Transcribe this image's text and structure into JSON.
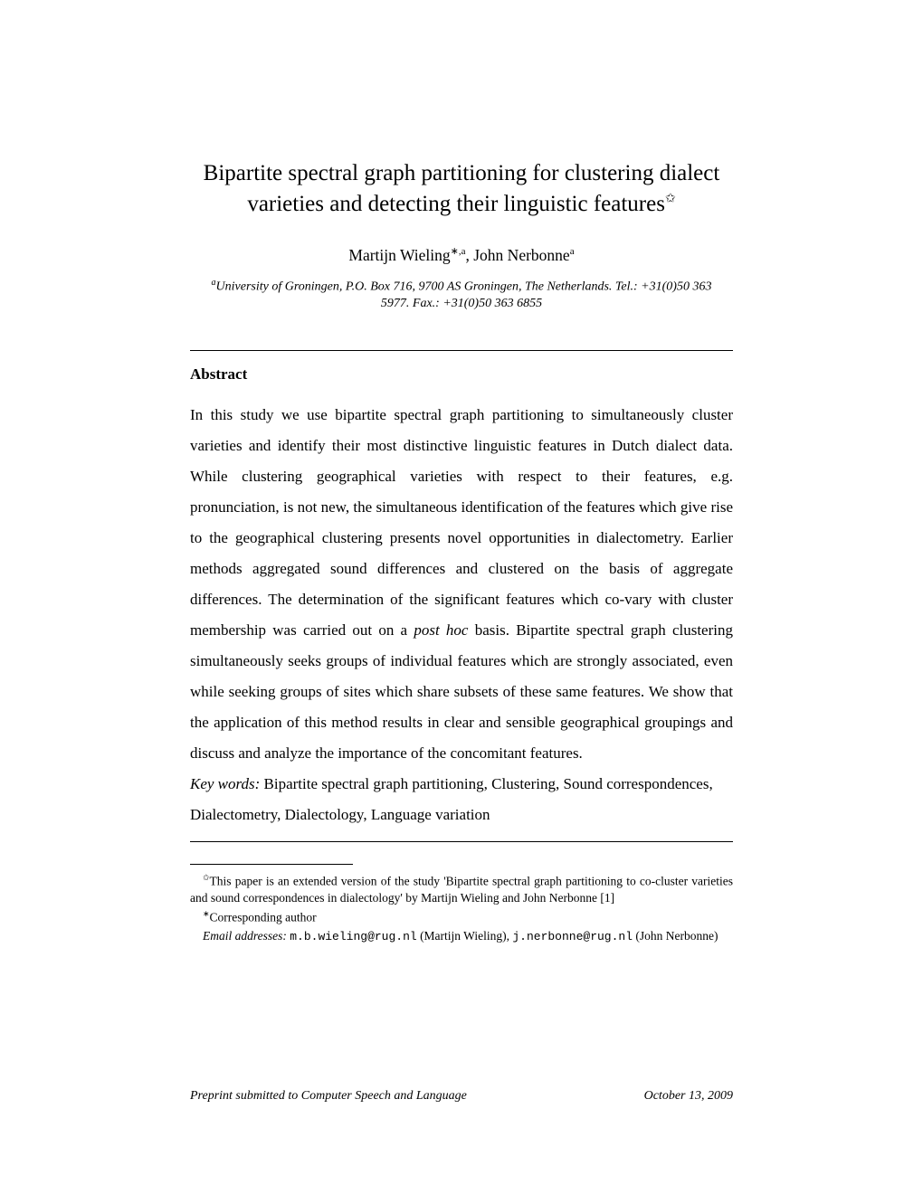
{
  "title": {
    "line1": "Bipartite spectral graph partitioning for clustering dialect",
    "line2_prefix": "varieties and detecting their linguistic features",
    "star": "✩"
  },
  "authors": {
    "a1_name": "Martijn Wieling",
    "a1_marks": "∗,a",
    "sep": ", ",
    "a2_name": "John Nerbonne",
    "a2_marks": "a"
  },
  "affiliation": {
    "sup": "a",
    "text": "University of Groningen, P.O. Box 716, 9700 AS Groningen, The Netherlands. Tel.: +31(0)50 363 5977. Fax.: +31(0)50 363 6855"
  },
  "abstract": {
    "heading": "Abstract",
    "body_pre": "In this study we use bipartite spectral graph partitioning to simultaneously cluster varieties and identify their most distinctive linguistic features in Dutch dialect data. While clustering geographical varieties with respect to their features, e.g. pronunciation, is not new, the simultaneous identification of the features which give rise to the geographical clustering presents novel opportunities in dialectometry. Earlier methods aggregated sound differences and clustered on the basis of aggregate differences. The determination of the significant features which co-vary with cluster membership was carried out on a ",
    "body_em": "post hoc",
    "body_post": " basis. Bipartite spectral graph clustering simultaneously seeks groups of individual features which are strongly associated, even while seeking groups of sites which share subsets of these same features. We show that the application of this method results in clear and sensible geographical groupings and discuss and analyze the importance of the concomitant features."
  },
  "keywords": {
    "label": "Key words:",
    "text": "  Bipartite spectral graph partitioning, Clustering, Sound correspondences, Dialectometry, Dialectology, Language variation"
  },
  "footnotes": {
    "n1_mark": "✩",
    "n1_text": "This paper is an extended version of the study 'Bipartite spectral graph partitioning to co-cluster varieties and sound correspondences in dialectology' by Martijn Wieling and John Nerbonne [1]",
    "n2_mark": "∗",
    "n2_text": "Corresponding author",
    "n3_label": "Email addresses:",
    "n3_email1": "m.b.wieling@rug.nl",
    "n3_name1": " (Martijn Wieling), ",
    "n3_email2": "j.nerbonne@rug.nl",
    "n3_name2": " (John Nerbonne)"
  },
  "footer": {
    "left": "Preprint submitted to Computer Speech and Language",
    "right": "October 13, 2009"
  },
  "colors": {
    "background": "#ffffff",
    "text": "#000000",
    "rule": "#000000"
  },
  "typography": {
    "title_fontsize": 25,
    "author_fontsize": 17.5,
    "affiliation_fontsize": 14,
    "body_fontsize": 17,
    "footnote_fontsize": 13.5,
    "footer_fontsize": 14,
    "line_height_body": 2.0
  }
}
